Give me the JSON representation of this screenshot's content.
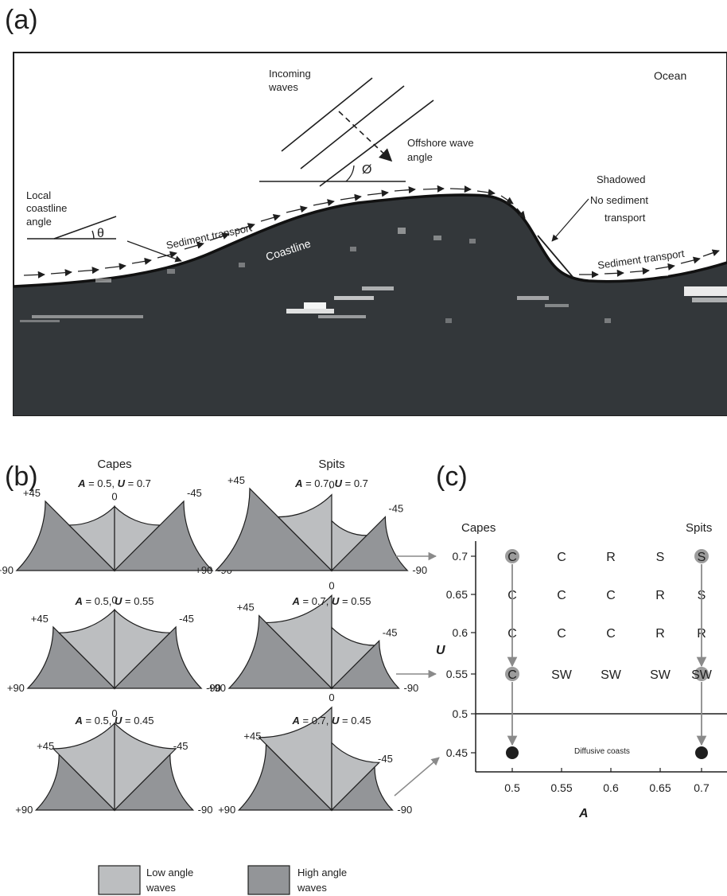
{
  "panel_a": {
    "letter": "(a)",
    "ocean": "Ocean",
    "incoming_waves": [
      "Incoming",
      "waves"
    ],
    "offshore_wave_angle": [
      "Offshore wave",
      "angle"
    ],
    "phi_symbol": "Ø",
    "local_coastline_angle": [
      "Local",
      "coastline",
      "angle"
    ],
    "theta_symbol": "θ",
    "sediment_transport": "Sediment transport",
    "coastline": "Coastline",
    "shadowed": [
      "Shadowed",
      "No sediment",
      "transport"
    ]
  },
  "panel_b": {
    "letter": "(b)",
    "columns": [
      "Capes",
      "Spits"
    ],
    "fans": [
      {
        "a_label": "A",
        "a_value": "0.5",
        "u_label": "U",
        "u_value": "0.7",
        "A": 0.5,
        "U": 0.7
      },
      {
        "a_label": "A",
        "a_value": "0.7",
        "u_label": "U",
        "u_value": "0.7",
        "A": 0.7,
        "U": 0.7
      },
      {
        "a_label": "A",
        "a_value": "0.5",
        "u_label": "U",
        "u_value": "0.55",
        "A": 0.5,
        "U": 0.55
      },
      {
        "a_label": "A",
        "a_value": "0.7",
        "u_label": "U",
        "u_value": "0.55",
        "A": 0.7,
        "U": 0.55
      },
      {
        "a_label": "A",
        "a_value": "0.5",
        "u_label": "U",
        "u_value": "0.45",
        "A": 0.5,
        "U": 0.45
      },
      {
        "a_label": "A",
        "a_value": "0.7",
        "u_label": "U",
        "u_value": "0.45",
        "A": 0.7,
        "U": 0.45
      }
    ],
    "angle_labels": {
      "p90": "+90",
      "p45": "+45",
      "zero": "0",
      "m45": "-45",
      "m90": "-90"
    },
    "legend": {
      "low": [
        "Low angle",
        "waves"
      ],
      "high": [
        "High angle",
        "waves"
      ]
    },
    "colors": {
      "low": "#bcbec0",
      "high": "#939598"
    }
  },
  "panel_c": {
    "letter": "(c)",
    "capes": "Capes",
    "spits": "Spits",
    "x_label": "A",
    "y_label": "U",
    "x_ticks": [
      "0.5",
      "0.55",
      "0.6",
      "0.65",
      "0.7"
    ],
    "y_ticks": [
      "0.7",
      "0.65",
      "0.6",
      "0.55",
      "0.5",
      "0.45"
    ],
    "grid": [
      [
        "C",
        "C",
        "R",
        "S",
        "S"
      ],
      [
        "C",
        "C",
        "C",
        "R",
        "S"
      ],
      [
        "C",
        "C",
        "C",
        "R",
        "R"
      ],
      [
        "C",
        "SW",
        "SW",
        "SW",
        "SW"
      ]
    ],
    "diffusive": "Diffusive coasts"
  }
}
